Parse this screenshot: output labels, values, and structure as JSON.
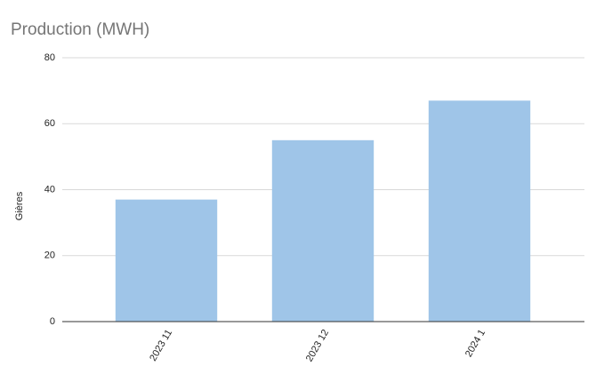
{
  "chart_data": {
    "type": "bar",
    "title": "Production (MWH)",
    "y_label": "Gières",
    "categories": [
      "2023 11",
      "2023 12",
      "2024 1"
    ],
    "values": [
      37,
      55,
      67
    ],
    "color": "#9fc5e8",
    "ylim": [
      0,
      80
    ],
    "yticks": [
      0,
      20,
      40,
      60,
      80
    ],
    "grid": true
  }
}
